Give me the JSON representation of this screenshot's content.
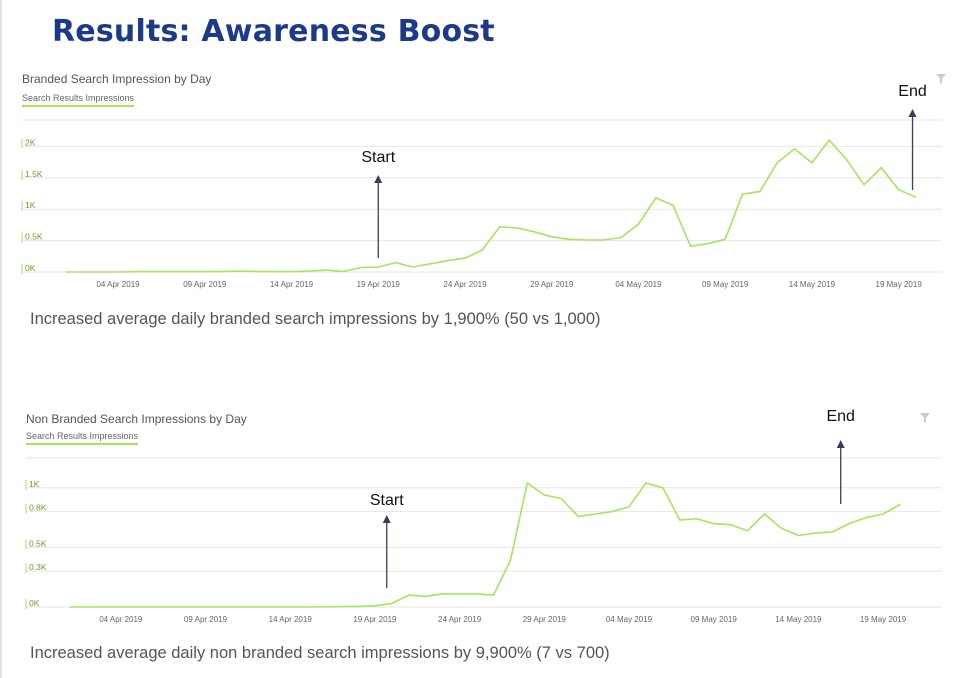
{
  "page_title": "Results: Awareness Boost",
  "colors": {
    "title": "#1d3a8a",
    "line": "#a6e55d",
    "arrow": "#34405a",
    "ytick": "#6a9e2a"
  },
  "chart_data": [
    {
      "type": "line",
      "title": "Branded Search Impression by Day",
      "legend": "Search Results Impressions",
      "y_ticks": [
        "2K",
        "1.5K",
        "1K",
        "0.5K",
        "0K"
      ],
      "y_tick_values": [
        2000,
        1500,
        1000,
        500,
        0
      ],
      "ylim": [
        0,
        2420
      ],
      "x_ticks": [
        "04 Apr 2019",
        "09 Apr 2019",
        "14 Apr 2019",
        "19 Apr 2019",
        "24 Apr 2019",
        "29 Apr 2019",
        "04 May 2019",
        "09 May 2019",
        "14 May 2019",
        "19 May 2019"
      ],
      "x_tick_days": [
        3,
        8,
        13,
        18,
        23,
        28,
        33,
        38,
        43,
        48
      ],
      "x_days": [
        0,
        1,
        2,
        3,
        4,
        5,
        6,
        7,
        8,
        9,
        10,
        11,
        12,
        13,
        14,
        15,
        16,
        17,
        18,
        19,
        20,
        21,
        22,
        23,
        24,
        25,
        26,
        27,
        28,
        29,
        30,
        31,
        32,
        33,
        34,
        35,
        36,
        37,
        38,
        39,
        40,
        41,
        42,
        43,
        44,
        45,
        46,
        47,
        48,
        49
      ],
      "values": [
        0,
        0,
        0,
        0,
        5,
        5,
        5,
        5,
        5,
        10,
        15,
        10,
        5,
        5,
        15,
        30,
        10,
        70,
        80,
        150,
        80,
        130,
        180,
        220,
        350,
        720,
        700,
        640,
        560,
        520,
        510,
        510,
        550,
        760,
        1180,
        1060,
        410,
        450,
        520,
        1240,
        1280,
        1740,
        1960,
        1740,
        2100,
        1790,
        1390,
        1660,
        1310,
        1190
      ],
      "annotations": [
        {
          "label": "Start",
          "day": 18
        },
        {
          "label": "End",
          "day": 48.8
        }
      ],
      "caption": "Increased average daily branded search impressions by 1,900% (50 vs 1,000)"
    },
    {
      "type": "line",
      "title": "Non Branded Search Impressions by Day",
      "legend": "Search Results Impressions",
      "y_ticks": [
        "1K",
        "0.8K",
        "0.5K",
        "0.3K",
        "0K"
      ],
      "y_tick_values": [
        1000,
        800,
        500,
        300,
        0
      ],
      "ylim": [
        0,
        1250
      ],
      "x_ticks": [
        "04 Apr 2019",
        "09 Apr 2019",
        "14 Apr 2019",
        "19 Apr 2019",
        "24 Apr 2019",
        "29 Apr 2019",
        "04 May 2019",
        "09 May 2019",
        "14 May 2019",
        "19 May 2019"
      ],
      "x_tick_days": [
        3,
        8,
        13,
        18,
        23,
        28,
        33,
        38,
        43,
        48
      ],
      "x_days": [
        0,
        1,
        2,
        3,
        4,
        5,
        6,
        7,
        8,
        9,
        10,
        11,
        12,
        13,
        14,
        15,
        16,
        17,
        18,
        19,
        20,
        21,
        22,
        23,
        24,
        25,
        26,
        27,
        28,
        29,
        30,
        31,
        32,
        33,
        34,
        35,
        36,
        37,
        38,
        39,
        40,
        41,
        42,
        43,
        44,
        45,
        46,
        47,
        48,
        49
      ],
      "values": [
        0,
        0,
        0,
        0,
        0,
        0,
        0,
        0,
        0,
        0,
        0,
        0,
        0,
        0,
        0,
        2,
        3,
        5,
        10,
        30,
        100,
        90,
        110,
        110,
        110,
        100,
        390,
        1040,
        940,
        910,
        760,
        780,
        800,
        840,
        1040,
        1000,
        730,
        740,
        700,
        690,
        640,
        780,
        660,
        600,
        620,
        630,
        700,
        750,
        780,
        860
      ],
      "annotations": [
        {
          "label": "Start",
          "day": 18.7
        },
        {
          "label": "End",
          "day": 45.5
        }
      ],
      "caption": "Increased average daily non branded search impressions by 9,900% (7 vs 700)"
    }
  ]
}
